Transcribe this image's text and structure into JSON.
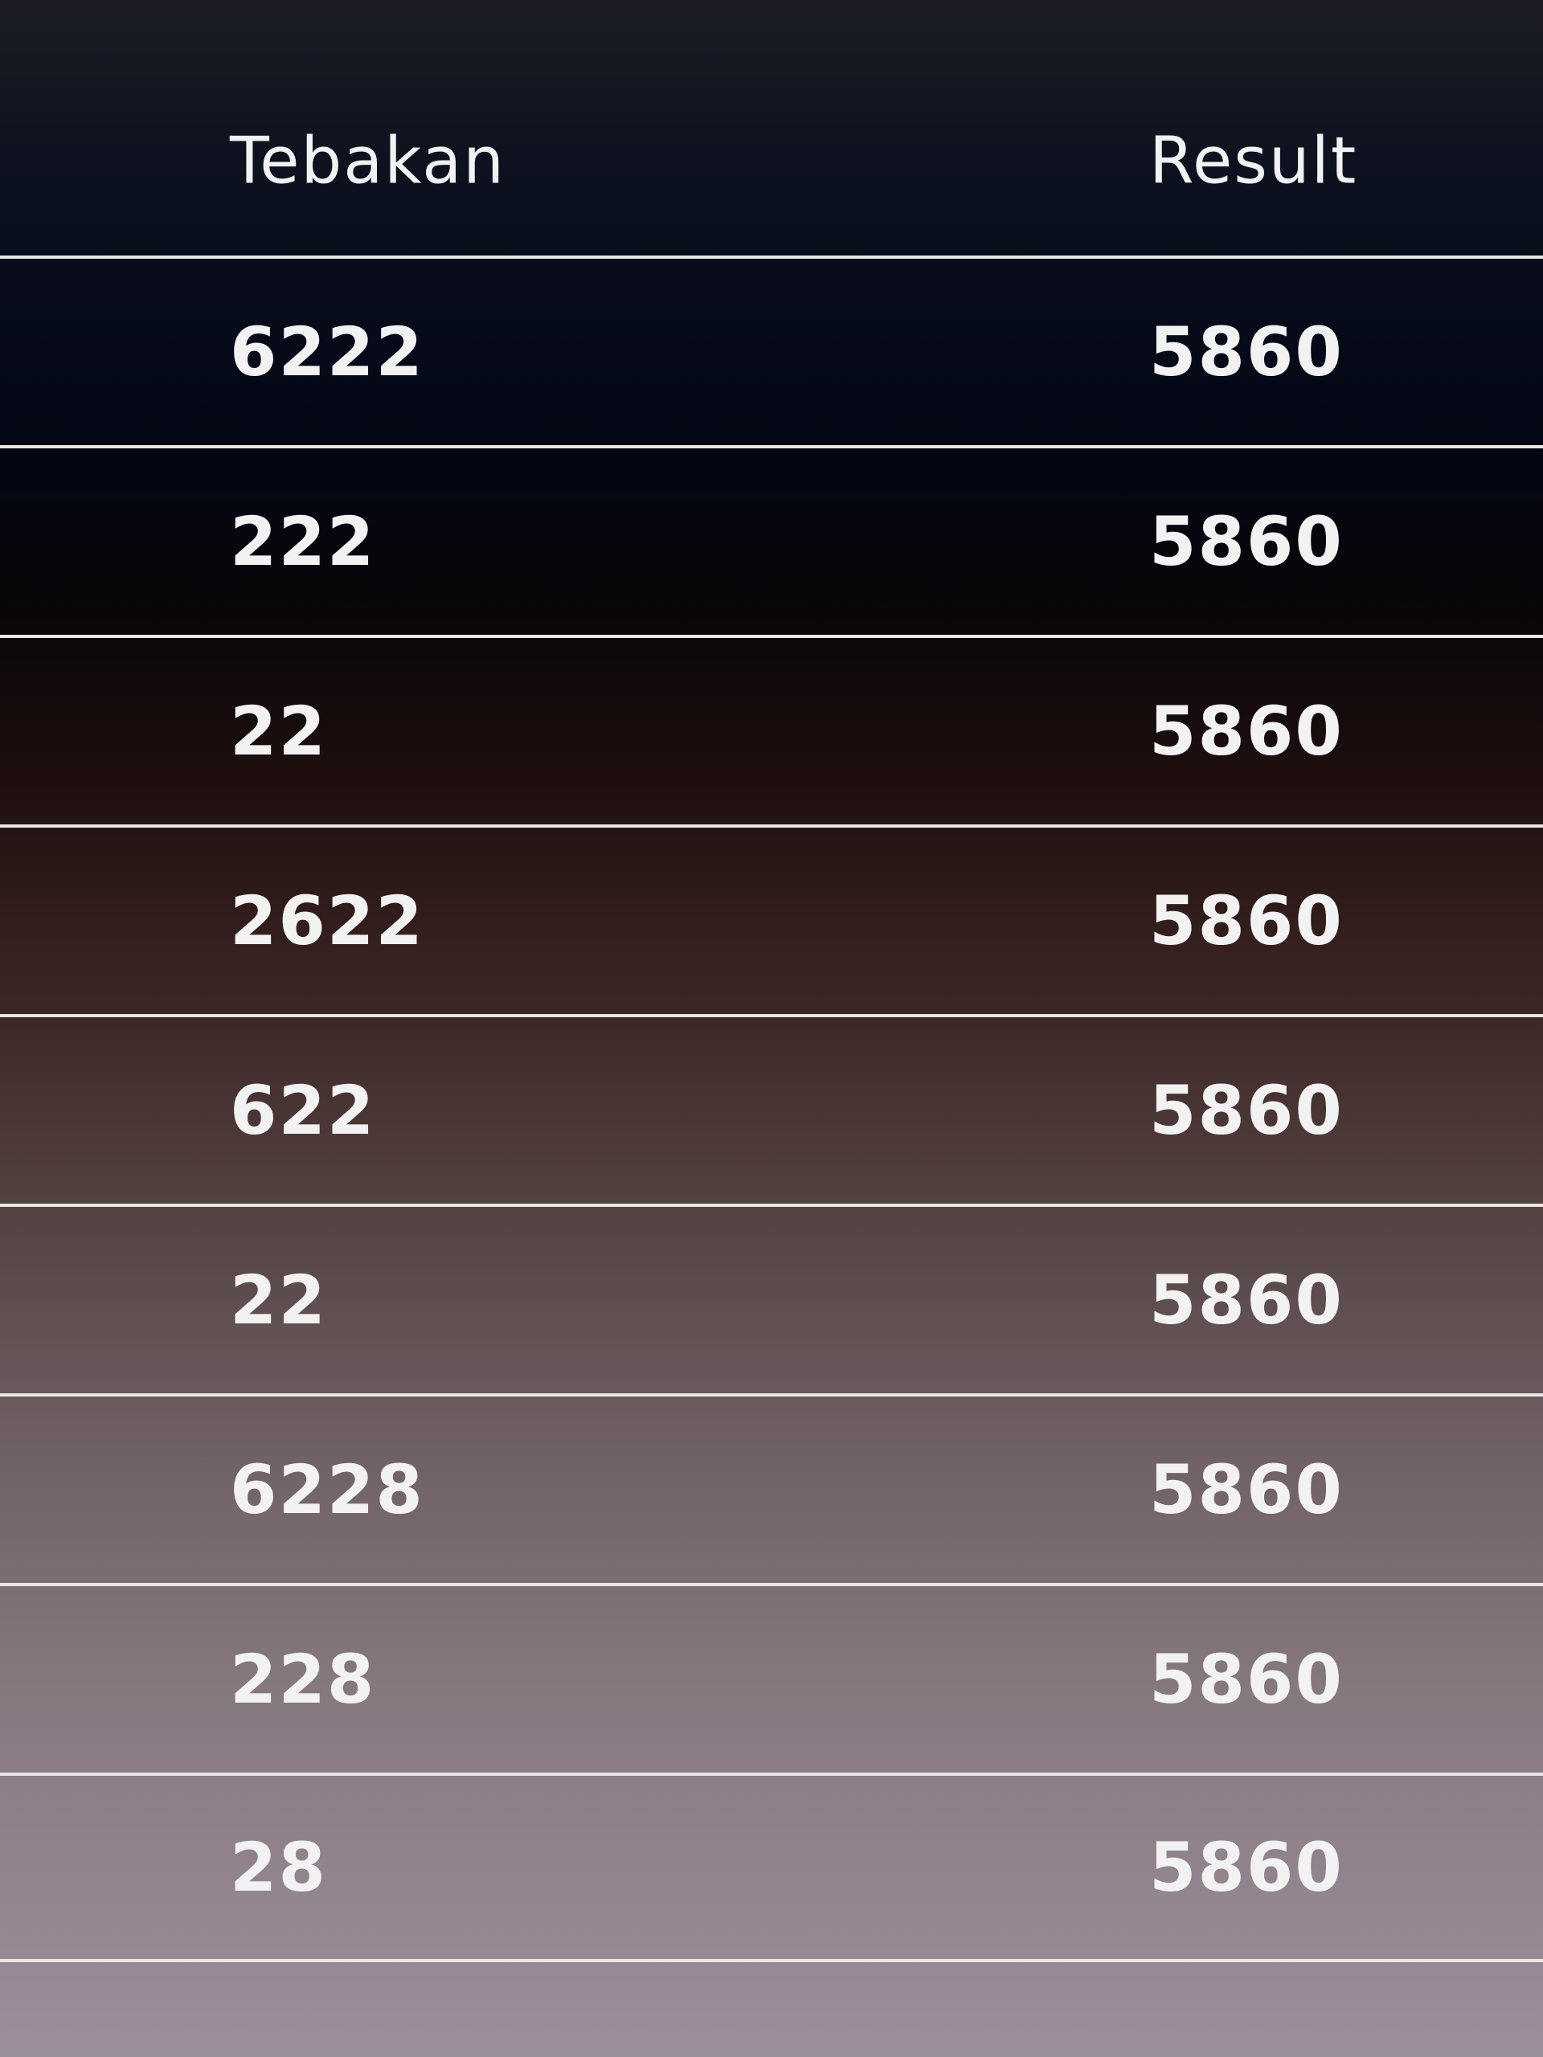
{
  "table": {
    "columns": [
      "Tebakan",
      "Result"
    ],
    "rows": [
      [
        "6222",
        "5860"
      ],
      [
        "222",
        "5860"
      ],
      [
        "22",
        "5860"
      ],
      [
        "2622",
        "5860"
      ],
      [
        "622",
        "5860"
      ],
      [
        "22",
        "5860"
      ],
      [
        "6228",
        "5860"
      ],
      [
        "228",
        "5860"
      ],
      [
        "28",
        "5860"
      ]
    ]
  }
}
